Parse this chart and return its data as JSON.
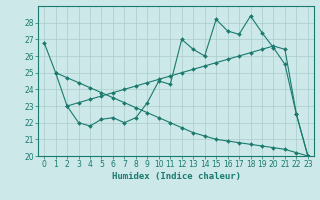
{
  "xlabel": "Humidex (Indice chaleur)",
  "bg_color": "#cce8e8",
  "line_color": "#1a7a6e",
  "grid_color": "#aacccc",
  "xlim": [
    -0.5,
    23.5
  ],
  "ylim": [
    20,
    29
  ],
  "yticks": [
    20,
    21,
    22,
    23,
    24,
    25,
    26,
    27,
    28
  ],
  "xticks": [
    0,
    1,
    2,
    3,
    4,
    5,
    6,
    7,
    8,
    9,
    10,
    11,
    12,
    13,
    14,
    15,
    16,
    17,
    18,
    19,
    20,
    21,
    22,
    23
  ],
  "line1_x": [
    0,
    1,
    2,
    3,
    4,
    5,
    6,
    7,
    8,
    9,
    10,
    11,
    12,
    13,
    14,
    15,
    16,
    17,
    18,
    19,
    20,
    21,
    22,
    23
  ],
  "line1_y": [
    26.8,
    25.0,
    23.0,
    22.0,
    21.8,
    22.2,
    22.3,
    22.0,
    22.3,
    23.2,
    24.5,
    24.3,
    27.0,
    26.4,
    26.0,
    28.2,
    27.5,
    27.3,
    28.4,
    27.4,
    26.5,
    25.5,
    22.5,
    20.0
  ],
  "line2_x": [
    2,
    3,
    4,
    5,
    6,
    7,
    8,
    9,
    10,
    11,
    12,
    13,
    14,
    15,
    16,
    17,
    18,
    19,
    20,
    21,
    22,
    23
  ],
  "line2_y": [
    23.0,
    23.2,
    23.4,
    23.6,
    23.8,
    24.0,
    24.2,
    24.4,
    24.6,
    24.8,
    25.0,
    25.2,
    25.4,
    25.6,
    25.8,
    26.0,
    26.2,
    26.4,
    26.6,
    26.4,
    22.5,
    20.0
  ],
  "line3_x": [
    1,
    2,
    3,
    4,
    5,
    6,
    7,
    8,
    9,
    10,
    11,
    12,
    13,
    14,
    15,
    16,
    17,
    18,
    19,
    20,
    21,
    22,
    23
  ],
  "line3_y": [
    25.0,
    24.7,
    24.4,
    24.1,
    23.8,
    23.5,
    23.2,
    22.9,
    22.6,
    22.3,
    22.0,
    21.7,
    21.4,
    21.2,
    21.0,
    20.9,
    20.8,
    20.7,
    20.6,
    20.5,
    20.4,
    20.2,
    20.0
  ],
  "marker": "D",
  "markersize": 2.0,
  "linewidth": 0.8
}
